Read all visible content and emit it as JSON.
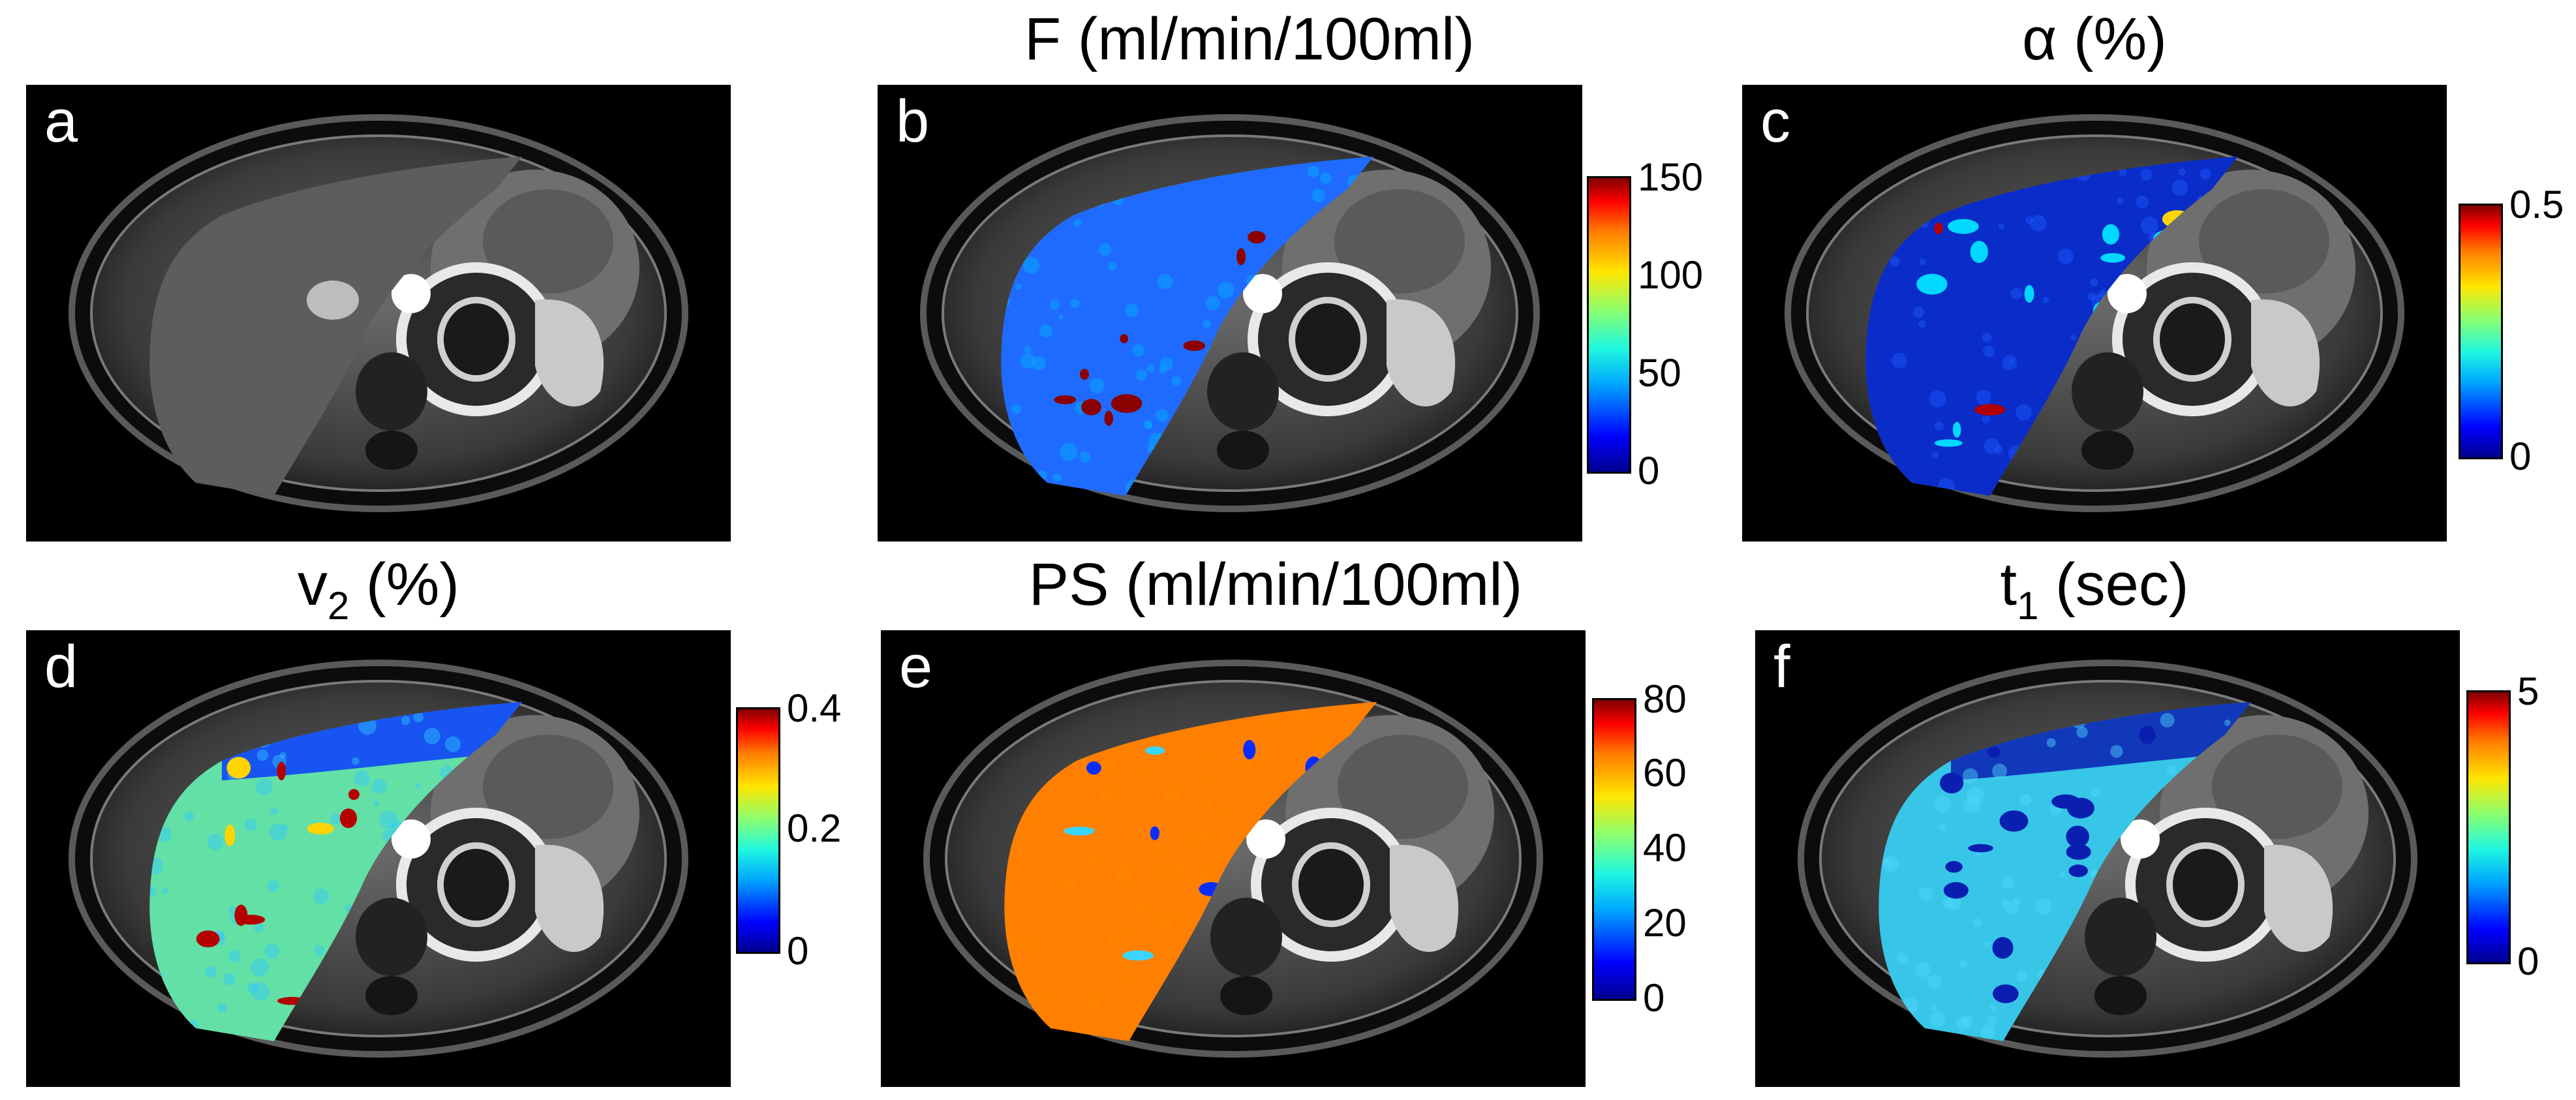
{
  "colormap": "jet",
  "panels": [
    {
      "id": "a",
      "letter": "a",
      "title": "",
      "overlay": false,
      "colorbar_ticks": []
    },
    {
      "id": "b",
      "letter": "b",
      "title": "F (ml/min/100ml)",
      "overlay": true,
      "overlay_style": "flow",
      "colorbar_ticks": [
        "150",
        "100",
        "50",
        "0"
      ]
    },
    {
      "id": "c",
      "letter": "c",
      "title_symbol": "α",
      "title_rest": " (%)",
      "overlay": true,
      "overlay_style": "alpha",
      "colorbar_ticks": [
        "0.5",
        "0"
      ]
    },
    {
      "id": "d",
      "letter": "d",
      "title_base": "v",
      "title_sub": "2",
      "title_rest": " (%)",
      "overlay": true,
      "overlay_style": "v2",
      "colorbar_ticks": [
        "0.4",
        "0.2",
        "0"
      ]
    },
    {
      "id": "e",
      "letter": "e",
      "title": "PS (ml/min/100ml)",
      "overlay": true,
      "overlay_style": "ps",
      "colorbar_ticks": [
        "80",
        "60",
        "40",
        "20",
        "0"
      ]
    },
    {
      "id": "f",
      "letter": "f",
      "title_base": "t",
      "title_sub": "1",
      "title_rest": " (sec)",
      "overlay": true,
      "overlay_style": "t1",
      "colorbar_ticks": [
        "5",
        "0"
      ]
    }
  ]
}
